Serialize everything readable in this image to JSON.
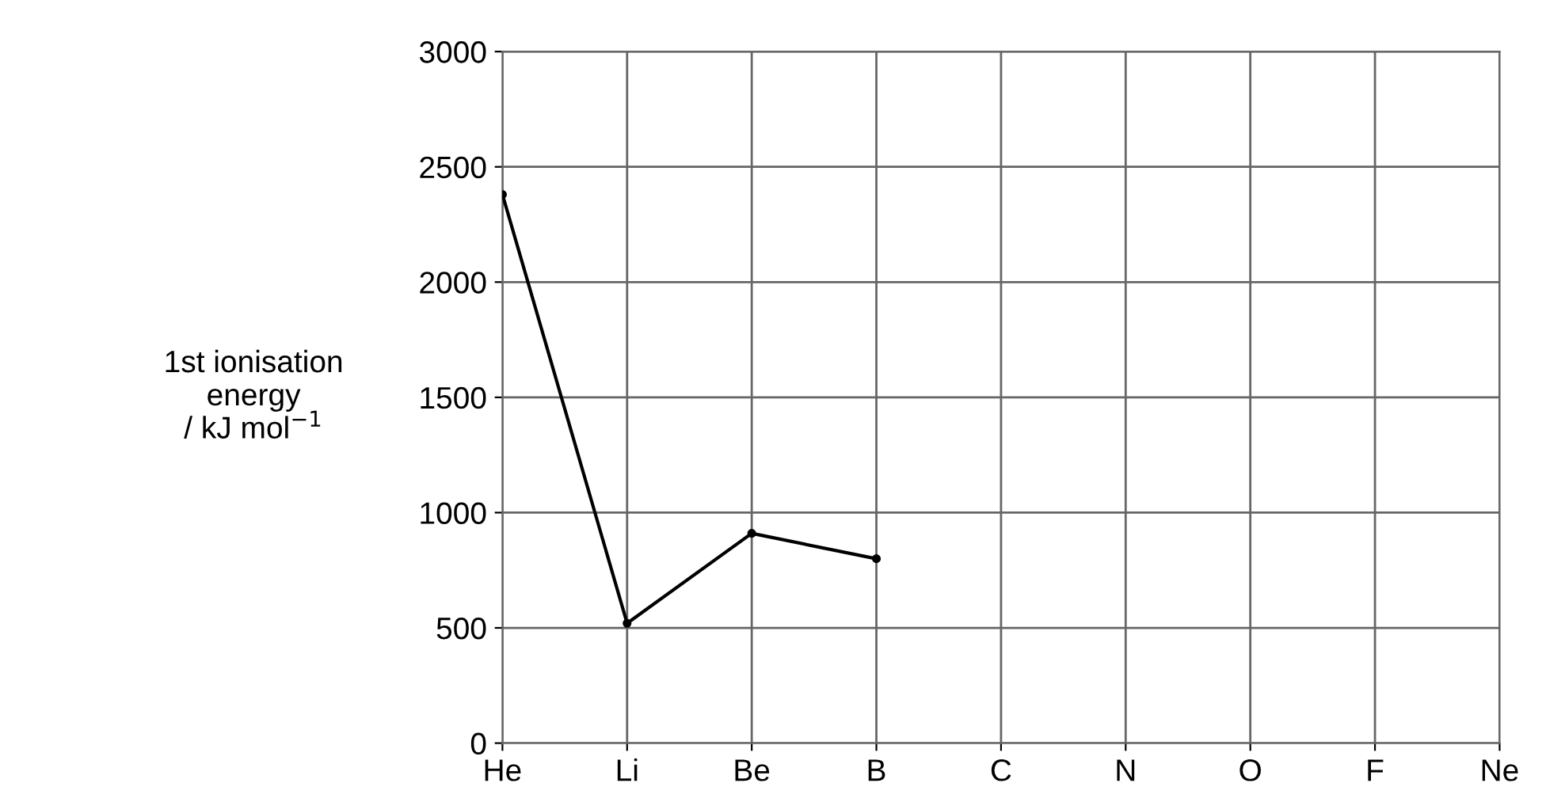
{
  "chart_data": {
    "type": "line",
    "ylabel": "1st ionisation\nenergy\n/ kJ mol$^{−1}$",
    "categories": [
      "He",
      "Li",
      "Be",
      "B",
      "C",
      "N",
      "O",
      "F",
      "Ne"
    ],
    "series": [
      {
        "color": "#000000",
        "values": [
          2380,
          520,
          910,
          800,
          null,
          null,
          null,
          null,
          null
        ]
      }
    ],
    "ylim": [
      0,
      3000
    ],
    "yticks": [
      0,
      500,
      1000,
      1500,
      2000,
      2500,
      3000
    ],
    "grid": true,
    "marker": "circle",
    "line_style": "solid"
  }
}
